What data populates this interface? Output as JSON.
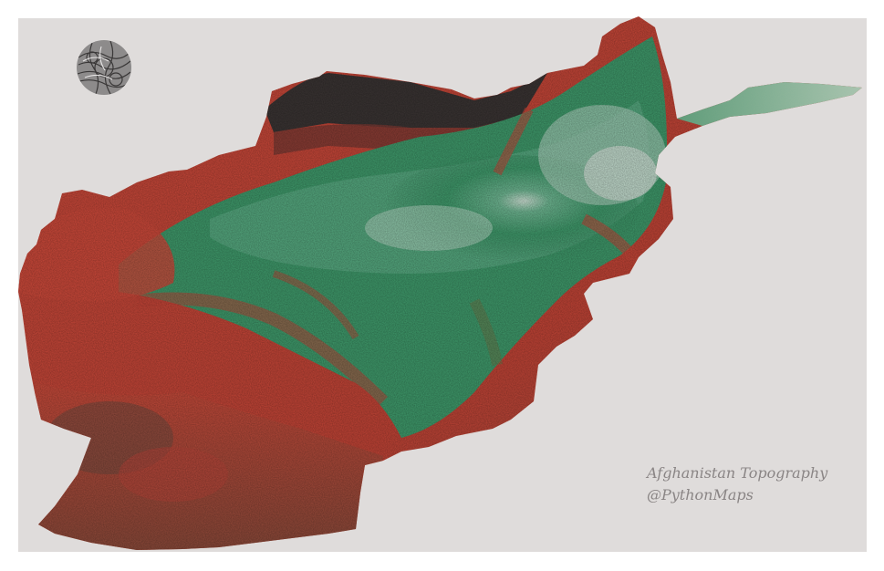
{
  "map": {
    "region": "Afghanistan",
    "style": "shaded relief topography",
    "colors": {
      "background": "#dfdcdb",
      "lowland": "#c6473a",
      "lowland_dark": "#6b3a35",
      "highland": "#3f9a6b",
      "peaks": "#d8e6dd",
      "north_plain": "#3a3433"
    }
  },
  "caption": {
    "title": "Afghanistan Topography",
    "credit": "@PythonMaps"
  },
  "logo": {
    "icon": "python-maps-logo-icon"
  }
}
